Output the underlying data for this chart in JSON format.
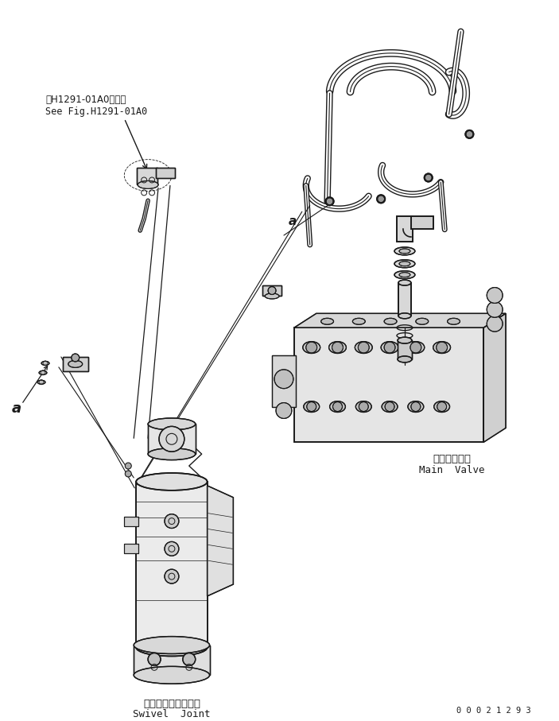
{
  "bg_color": "#ffffff",
  "line_color": "#1a1a1a",
  "fig_width": 7.03,
  "fig_height": 9.07,
  "dpi": 100,
  "serial_number": "0 0 0 2 1 2 9 3",
  "note_line1": "第H1291-01A0図参照",
  "note_line2": "See Fig.H1291-01A0",
  "main_valve_jp": "メインバルブ",
  "main_valve_en": "Main  Valve",
  "swivel_jp": "スイベルジョイント",
  "swivel_en": "Swivel  Joint",
  "label_a1": "a",
  "label_a2": "a"
}
